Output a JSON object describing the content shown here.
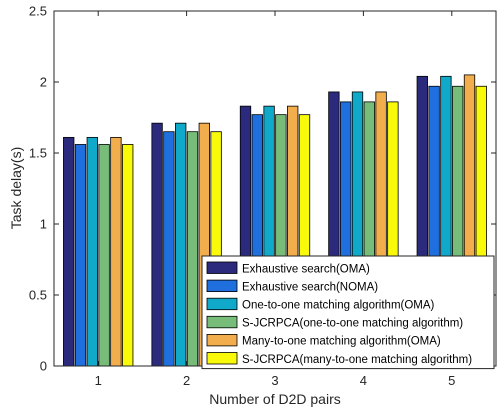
{
  "chart_data": {
    "type": "bar",
    "title": "",
    "xlabel": "Number of D2D pairs",
    "ylabel": "Task delay(s)",
    "categories": [
      "1",
      "2",
      "3",
      "4",
      "5"
    ],
    "ylim": [
      0,
      2.5
    ],
    "yticks": [
      "0",
      "0.5",
      "1",
      "1.5",
      "2",
      "2.5"
    ],
    "grid": false,
    "legend_position": "bottom-right",
    "series": [
      {
        "name": "Exhaustive search(OMA)",
        "color": "#2b2a7c",
        "values": [
          1.61,
          1.71,
          1.83,
          1.93,
          2.04
        ]
      },
      {
        "name": "Exhaustive search(NOMA)",
        "color": "#1f6fde",
        "values": [
          1.56,
          1.65,
          1.77,
          1.86,
          1.97
        ]
      },
      {
        "name": "One-to-one matching algorithm(OMA)",
        "color": "#11a9c9",
        "values": [
          1.61,
          1.71,
          1.83,
          1.93,
          2.04
        ]
      },
      {
        "name": "S-JCRPCA(one-to-one matching algorithm)",
        "color": "#77bd79",
        "values": [
          1.56,
          1.65,
          1.77,
          1.86,
          1.97
        ]
      },
      {
        "name": "Many-to-one matching algorithm(OMA)",
        "color": "#f2ae4c",
        "values": [
          1.61,
          1.71,
          1.83,
          1.93,
          2.05
        ]
      },
      {
        "name": "S-JCRPCA(many-to-one matching algorithm)",
        "color": "#f9f90a",
        "values": [
          1.56,
          1.65,
          1.77,
          1.86,
          1.97
        ]
      }
    ]
  }
}
